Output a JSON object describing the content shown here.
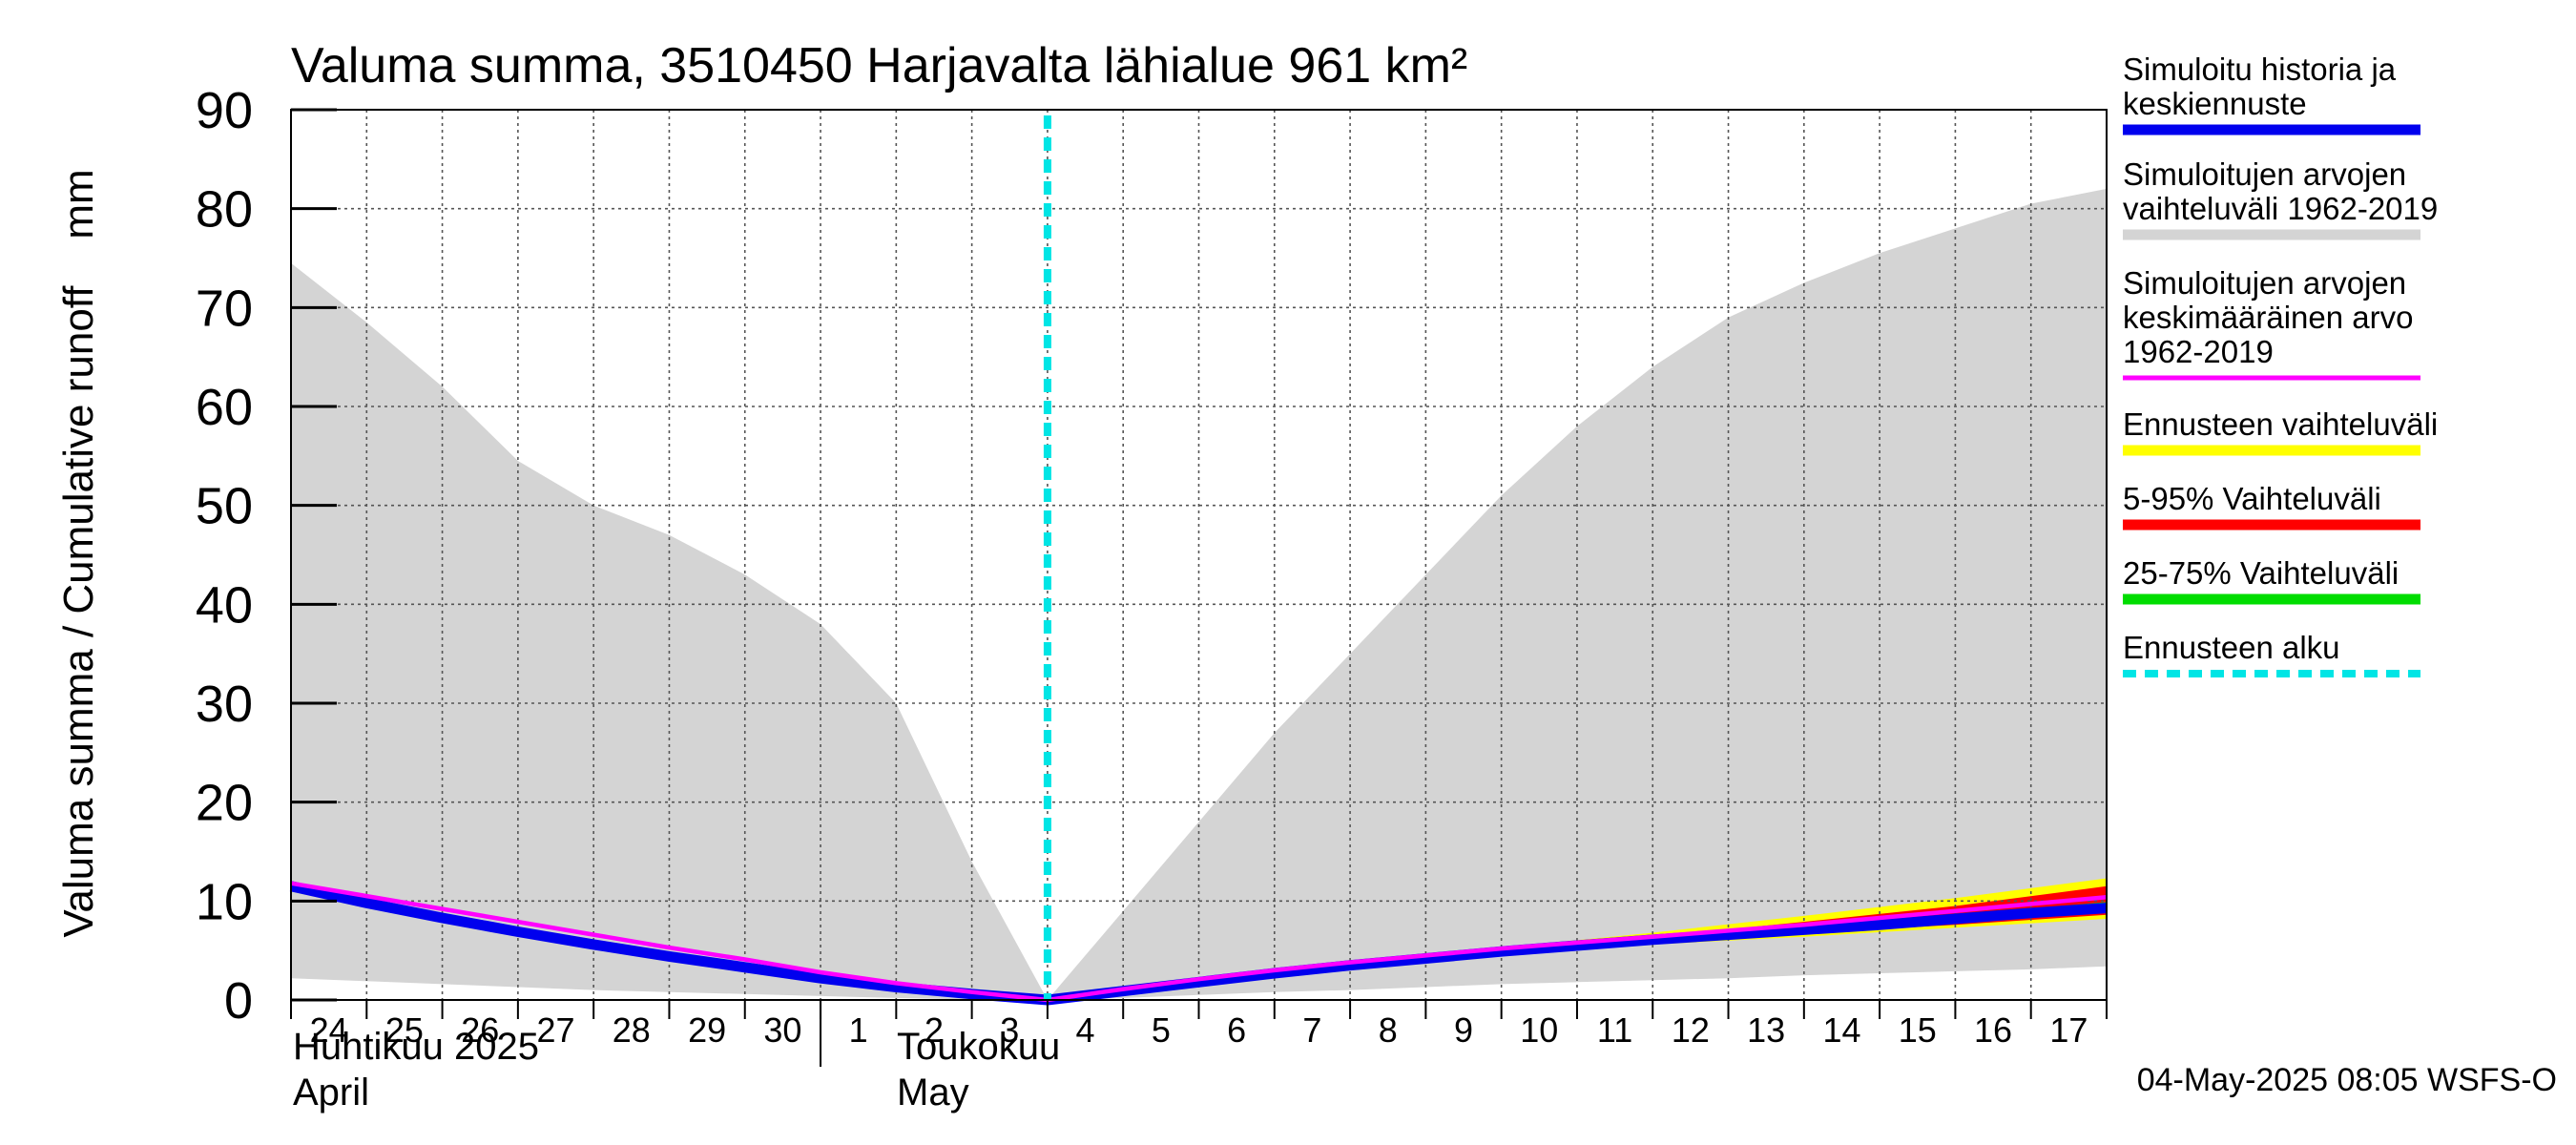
{
  "chart_data": {
    "type": "area",
    "title": "Valuma summa, 3510450 Harjavalta lähialue 961 km²",
    "ylabel": "Valuma summa / Cumulative runoff    mm",
    "ylim": [
      0,
      90
    ],
    "yticks": [
      0,
      10,
      20,
      30,
      40,
      50,
      60,
      70,
      80,
      90
    ],
    "xlim": [
      "2025-04-24",
      "2025-05-18"
    ],
    "x_tick_labels": [
      "24",
      "25",
      "26",
      "27",
      "28",
      "29",
      "30",
      "1",
      "2",
      "3",
      "4",
      "5",
      "6",
      "7",
      "8",
      "9",
      "10",
      "11",
      "12",
      "13",
      "14",
      "15",
      "16",
      "17"
    ],
    "month_labels": [
      {
        "fi": "Huhtikuu  2025",
        "en": "April"
      },
      {
        "fi": "Toukokuu",
        "en": "May"
      }
    ],
    "grid": true,
    "forecast_start": "2025-05-04",
    "timestamp": "04-May-2025 08:05 WSFS-O",
    "colors": {
      "history": "#0000ee",
      "range_grey": "#d4d4d4",
      "mean": "#ff00ff",
      "forecast_range": "#ffff00",
      "p5_95": "#ff0000",
      "p25_75": "#00dd00",
      "forecast_start": "#00e5e5"
    },
    "legend": {
      "placement": "right",
      "items": [
        {
          "key": "history",
          "label_lines": [
            "Simuloitu historia ja",
            "keskiennuste"
          ],
          "style": "solid"
        },
        {
          "key": "range_grey",
          "label_lines": [
            "Simuloitujen arvojen",
            "vaihteluväli 1962-2019"
          ],
          "style": "solid"
        },
        {
          "key": "mean",
          "label_lines": [
            "Simuloitujen arvojen",
            "keskimääräinen arvo",
            "   1962-2019"
          ],
          "style": "thin"
        },
        {
          "key": "forecast_range",
          "label_lines": [
            "Ennusteen vaihteluväli"
          ],
          "style": "solid"
        },
        {
          "key": "p5_95",
          "label_lines": [
            "5-95% Vaihteluväli"
          ],
          "style": "solid"
        },
        {
          "key": "p25_75",
          "label_lines": [
            "25-75% Vaihteluväli"
          ],
          "style": "solid"
        },
        {
          "key": "forecast_start",
          "label_lines": [
            "Ennusteen alku"
          ],
          "style": "dashed"
        }
      ]
    },
    "series": [
      {
        "name": "Simuloitujen arvojen vaihteluväli 1962-2019 (max)",
        "x": [
          "2025-04-24",
          "2025-04-25",
          "2025-04-26",
          "2025-04-27",
          "2025-04-28",
          "2025-04-29",
          "2025-04-30",
          "2025-05-01",
          "2025-05-02",
          "2025-05-03",
          "2025-05-04",
          "2025-05-05",
          "2025-05-06",
          "2025-05-07",
          "2025-05-08",
          "2025-05-09",
          "2025-05-10",
          "2025-05-11",
          "2025-05-12",
          "2025-05-13",
          "2025-05-14",
          "2025-05-15",
          "2025-05-16",
          "2025-05-17",
          "2025-05-18"
        ],
        "y": [
          74.5,
          68.5,
          62,
          54.5,
          50,
          47,
          43,
          38,
          30,
          14,
          0,
          9,
          18,
          27,
          35,
          43,
          51,
          58,
          64,
          69,
          72.5,
          75.5,
          78,
          80.5,
          82
        ]
      },
      {
        "name": "Simuloitujen arvojen vaihteluväli 1962-2019 (min)",
        "x": [
          "2025-04-24",
          "2025-04-25",
          "2025-04-26",
          "2025-04-27",
          "2025-04-28",
          "2025-04-29",
          "2025-04-30",
          "2025-05-01",
          "2025-05-02",
          "2025-05-03",
          "2025-05-04",
          "2025-05-05",
          "2025-05-06",
          "2025-05-07",
          "2025-05-08",
          "2025-05-09",
          "2025-05-10",
          "2025-05-11",
          "2025-05-12",
          "2025-05-13",
          "2025-05-14",
          "2025-05-15",
          "2025-05-16",
          "2025-05-17",
          "2025-05-18"
        ],
        "y": [
          2.2,
          1.9,
          1.6,
          1.3,
          1.0,
          0.8,
          0.6,
          0.4,
          0.2,
          0.05,
          0,
          0.2,
          0.5,
          0.8,
          1.0,
          1.3,
          1.6,
          1.8,
          2.0,
          2.2,
          2.5,
          2.7,
          2.9,
          3.1,
          3.4
        ]
      },
      {
        "name": "Simuloitu historia ja keskiennuste",
        "x": [
          "2025-04-24",
          "2025-04-25",
          "2025-04-26",
          "2025-04-27",
          "2025-04-28",
          "2025-04-29",
          "2025-04-30",
          "2025-05-01",
          "2025-05-02",
          "2025-05-03",
          "2025-05-04",
          "2025-05-05",
          "2025-05-06",
          "2025-05-07",
          "2025-05-08",
          "2025-05-09",
          "2025-05-10",
          "2025-05-11",
          "2025-05-12",
          "2025-05-13",
          "2025-05-14",
          "2025-05-15",
          "2025-05-16",
          "2025-05-17",
          "2025-05-18"
        ],
        "y": [
          11.5,
          9.8,
          8.3,
          6.9,
          5.6,
          4.4,
          3.3,
          2.2,
          1.3,
          0.6,
          0,
          0.9,
          1.8,
          2.7,
          3.5,
          4.2,
          4.9,
          5.5,
          6.1,
          6.6,
          7.1,
          7.6,
          8.2,
          8.8,
          9.3
        ]
      },
      {
        "name": "Simuloitujen arvojen keskimääräinen arvo 1962-2019",
        "x": [
          "2025-04-24",
          "2025-04-25",
          "2025-04-26",
          "2025-04-27",
          "2025-04-28",
          "2025-04-29",
          "2025-04-30",
          "2025-05-01",
          "2025-05-02",
          "2025-05-03",
          "2025-05-04",
          "2025-05-05",
          "2025-05-06",
          "2025-05-07",
          "2025-05-08",
          "2025-05-09",
          "2025-05-10",
          "2025-05-11",
          "2025-05-12",
          "2025-05-13",
          "2025-05-14",
          "2025-05-15",
          "2025-05-16",
          "2025-05-17",
          "2025-05-18"
        ],
        "y": [
          11.8,
          10.5,
          9.2,
          7.9,
          6.6,
          5.3,
          4.1,
          2.8,
          1.7,
          0.8,
          0,
          1.1,
          2.1,
          3.0,
          3.8,
          4.5,
          5.2,
          5.8,
          6.4,
          7.0,
          7.6,
          8.3,
          9.0,
          9.7,
          10.4
        ]
      },
      {
        "name": "Ennusteen vaihteluväli (max)",
        "x": [
          "2025-05-04",
          "2025-05-10",
          "2025-05-12",
          "2025-05-14",
          "2025-05-16",
          "2025-05-18"
        ],
        "y": [
          0,
          5.3,
          6.8,
          8.5,
          10.3,
          12.3
        ]
      },
      {
        "name": "Ennusteen vaihteluväli (min)",
        "x": [
          "2025-05-04",
          "2025-05-10",
          "2025-05-12",
          "2025-05-14",
          "2025-05-16",
          "2025-05-18"
        ],
        "y": [
          0,
          4.6,
          5.6,
          6.4,
          7.3,
          8.2
        ]
      },
      {
        "name": "5-95% Vaihteluväli (max)",
        "x": [
          "2025-05-04",
          "2025-05-10",
          "2025-05-12",
          "2025-05-14",
          "2025-05-16",
          "2025-05-18"
        ],
        "y": [
          0,
          5.1,
          6.4,
          7.9,
          9.5,
          11.5
        ]
      },
      {
        "name": "5-95% Vaihteluväli (min)",
        "x": [
          "2025-05-04",
          "2025-05-10",
          "2025-05-12",
          "2025-05-14",
          "2025-05-16",
          "2025-05-18"
        ],
        "y": [
          0,
          4.7,
          5.8,
          6.7,
          7.6,
          8.6
        ]
      },
      {
        "name": "25-75% Vaihteluväli (max)",
        "x": [
          "2025-05-04",
          "2025-05-10",
          "2025-05-12",
          "2025-05-14",
          "2025-05-16",
          "2025-05-18"
        ],
        "y": [
          0,
          5.0,
          6.2,
          7.4,
          8.6,
          9.9
        ]
      },
      {
        "name": "25-75% Vaihteluväli (min)",
        "x": [
          "2025-05-04",
          "2025-05-10",
          "2025-05-12",
          "2025-05-14",
          "2025-05-16",
          "2025-05-18"
        ],
        "y": [
          0,
          4.8,
          5.9,
          6.9,
          7.9,
          8.8
        ]
      }
    ]
  }
}
